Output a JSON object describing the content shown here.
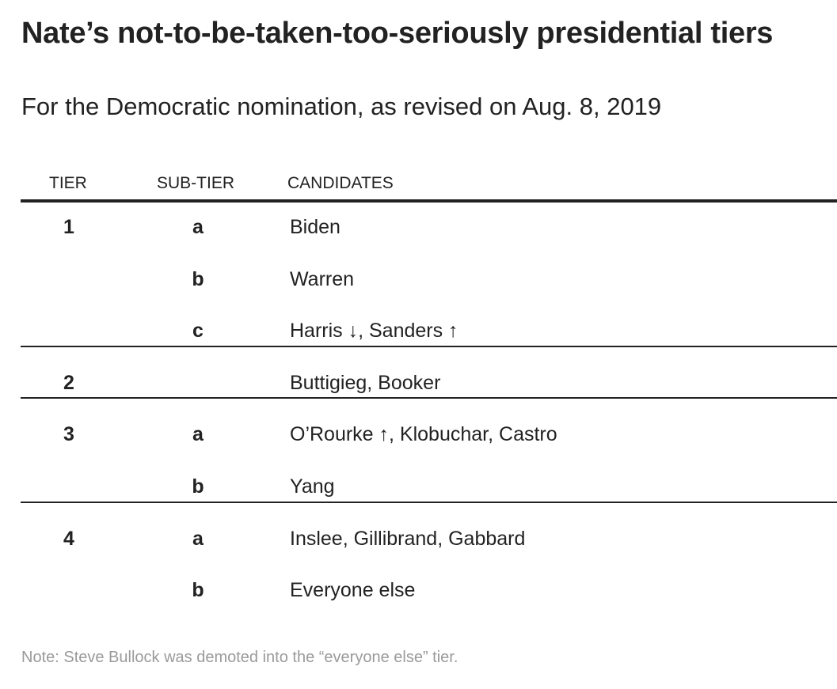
{
  "title": "Nate’s not-to-be-taken-too-seriously presidential tiers",
  "subtitle": "For the Democratic nomination, as revised on Aug. 8, 2019",
  "note": "Note: Steve Bullock was demoted into the “everyone else” tier.",
  "colors": {
    "text": "#222222",
    "rule": "#222222",
    "note": "#9a9a9a",
    "background": "#ffffff"
  },
  "chart_data": {
    "type": "table",
    "title": "Nate’s not-to-be-taken-too-seriously presidential tiers",
    "subtitle": "For the Democratic nomination, as revised on Aug. 8, 2019",
    "columns": [
      "TIER",
      "SUB-TIER",
      "CANDIDATES"
    ],
    "rows": [
      {
        "tier": "1",
        "subtier": "a",
        "candidates": "Biden"
      },
      {
        "tier": "",
        "subtier": "b",
        "candidates": "Warren"
      },
      {
        "tier": "",
        "subtier": "c",
        "candidates": "Harris ↓, Sanders ↑"
      },
      {
        "tier": "2",
        "subtier": "",
        "candidates": "Buttigieg, Booker"
      },
      {
        "tier": "3",
        "subtier": "a",
        "candidates": "O’Rourke ↑, Klobuchar, Castro"
      },
      {
        "tier": "",
        "subtier": "b",
        "candidates": "Yang"
      },
      {
        "tier": "4",
        "subtier": "a",
        "candidates": "Inslee, Gillibrand, Gabbard"
      },
      {
        "tier": "",
        "subtier": "b",
        "candidates": "Everyone else"
      }
    ],
    "note": "Note: Steve Bullock was demoted into the “everyone else” tier."
  }
}
